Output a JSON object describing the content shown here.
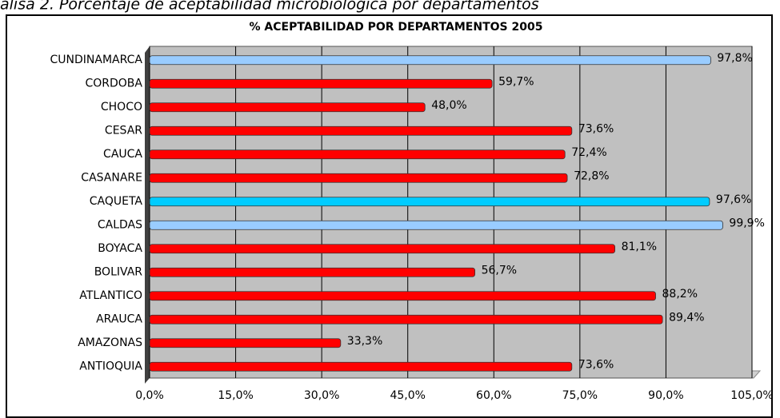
{
  "caption": "alisa 2. Porcentaje de aceptabilidad microbiológica por departamentos",
  "chart_data": {
    "type": "barh",
    "title": "% ACEPTABILIDAD POR DEPARTAMENTOS 2005",
    "categories": [
      "CUNDINAMARCA",
      "CORDOBA",
      "CHOCO",
      "CESAR",
      "CAUCA",
      "CASANARE",
      "CAQUETA",
      "CALDAS",
      "BOYACA",
      "BOLIVAR",
      "ATLANTICO",
      "ARAUCA",
      "AMAZONAS",
      "ANTIOQUIA"
    ],
    "values": [
      97.8,
      59.7,
      48.0,
      73.6,
      72.4,
      72.8,
      97.6,
      99.9,
      81.1,
      56.7,
      88.2,
      89.4,
      33.3,
      73.6
    ],
    "value_labels": [
      "97,8%",
      "59,7%",
      "48,0%",
      "73,6%",
      "72,4%",
      "72,8%",
      "97,6%",
      "99,9%",
      "81,1%",
      "56,7%",
      "88,2%",
      "89,4%",
      "33,3%",
      "73,6%"
    ],
    "colors": [
      "#99ccff",
      "#ff0000",
      "#ff0000",
      "#ff0000",
      "#ff0000",
      "#ff0000",
      "#00ccff",
      "#99ccff",
      "#ff0000",
      "#ff0000",
      "#ff0000",
      "#ff0000",
      "#ff0000",
      "#ff0000"
    ],
    "xlim": [
      0,
      105
    ],
    "xticks": [
      {
        "value": 0,
        "label": "0,0%"
      },
      {
        "value": 15,
        "label": "15,0%"
      },
      {
        "value": 30,
        "label": "30,0%"
      },
      {
        "value": 45,
        "label": "45,0%"
      },
      {
        "value": 60,
        "label": "60,0%"
      },
      {
        "value": 75,
        "label": "75,0%"
      },
      {
        "value": 90,
        "label": "90,0%"
      },
      {
        "value": 105,
        "label": "105,0%"
      }
    ],
    "grid": true
  }
}
